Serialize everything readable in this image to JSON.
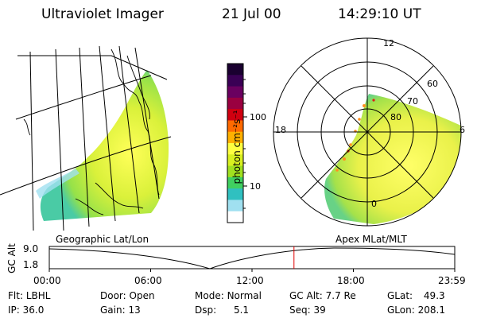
{
  "header": {
    "title": "Ultraviolet Imager",
    "date": "21 Jul 00",
    "time": "14:29:10 UT"
  },
  "colorbar": {
    "label": "photon cm⁻²s⁻¹",
    "ticks": [
      "100",
      "10"
    ],
    "colors": [
      "#1a0030",
      "#3a0055",
      "#6a0060",
      "#9a0040",
      "#d00010",
      "#ff6a00",
      "#ffb000",
      "#ffff40",
      "#d8f020",
      "#a0e020",
      "#40d060",
      "#30c0c0",
      "#a0e0f0",
      "#ffffff"
    ]
  },
  "left_panel": {
    "caption": "Geographic Lat/Lon"
  },
  "right_panel": {
    "caption": "Apex MLat/MLT",
    "mlt_labels": {
      "top": "12",
      "left": "18",
      "right": "6",
      "bottom": "0"
    },
    "lat_labels": [
      "60",
      "70",
      "80"
    ]
  },
  "timeline": {
    "ylabel": "GC Alt",
    "ytick_top": "9.0",
    "ytick_bottom": "1.8",
    "xticks": [
      "00:00",
      "06:00",
      "12:00",
      "18:00",
      "23:59"
    ],
    "current_fraction": 0.6035
  },
  "info": {
    "row1": [
      {
        "key": "Flt:",
        "value": "LBHL"
      },
      {
        "key": "Door:",
        "value": "Open"
      },
      {
        "key": "Mode:",
        "value": "Normal"
      },
      {
        "key": "GC Alt:",
        "value": "7.7 Re"
      },
      {
        "key": "GLat:",
        "value": "49.3"
      }
    ],
    "row2": [
      {
        "key": "IP:",
        "value": "36.0"
      },
      {
        "key": "Gain:",
        "value": "13"
      },
      {
        "key": "Dsp:",
        "value": "5.1"
      },
      {
        "key": "Seq:",
        "value": "39"
      },
      {
        "key": "GLon:",
        "value": "208.1"
      }
    ]
  }
}
